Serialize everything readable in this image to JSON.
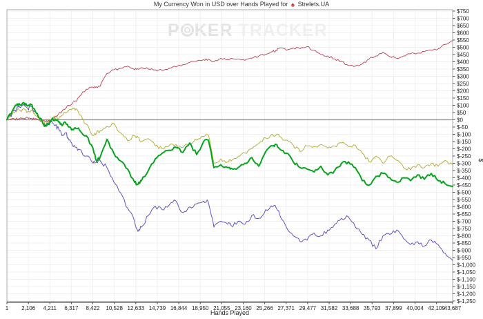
{
  "header": {
    "title_prefix": "My Currency Won in USD over Hands Played for",
    "site_icon": "red-spade-icon",
    "site_icon_glyph": "♠",
    "site_name": "Strelets.UA"
  },
  "watermark": {
    "p": "P",
    "ker": "KER",
    "tracker": "TRACKER"
  },
  "colors": {
    "title_text": "#333333",
    "site_icon": "#d42a2a",
    "watermark_dark": "#e2e2e2",
    "watermark_light": "#efefef",
    "grid": "#f0f0f0",
    "border": "#a8a8a8",
    "axis": "#333333",
    "tick": "#555555",
    "zero_line": "#888888",
    "tick_text": "#222222"
  },
  "chart_data": {
    "type": "line",
    "title": "My Currency Won in USD over Hands Played for Strelets.UA",
    "xlabel": "Hands Played",
    "ylabel": "$",
    "xlim": [
      1,
      43687
    ],
    "ylim": [
      -1250,
      750
    ],
    "grid": true,
    "legend": "none",
    "x_ticks": [
      1,
      2106,
      4211,
      6317,
      8422,
      10528,
      12633,
      14739,
      16844,
      18950,
      21055,
      23160,
      25266,
      27371,
      29477,
      31582,
      33688,
      35793,
      37899,
      40004,
      42109,
      43687
    ],
    "x_tick_labels": [
      "1",
      "2,106",
      "4,211",
      "6,317",
      "8,422",
      "10,528",
      "12,633",
      "14,739",
      "16,844",
      "18,950",
      "21,055",
      "23,160",
      "25,266",
      "27,371",
      "29,477",
      "31,582",
      "33,688",
      "35,793",
      "37,899",
      "40,004",
      "42,109",
      "43,687"
    ],
    "y_tick_step": 50,
    "y_tick_labels": [
      "$750",
      "$700",
      "$650",
      "$600",
      "$550",
      "$500",
      "$450",
      "$400",
      "$350",
      "$300",
      "$250",
      "$200",
      "$150",
      "$100",
      "$50",
      "$0",
      "$-50",
      "$-100",
      "$-150",
      "$-200",
      "$-250",
      "$-300",
      "$-350",
      "$-400",
      "$-450",
      "$-500",
      "$-550",
      "$-600",
      "$-650",
      "$-700",
      "$-750",
      "$-800",
      "$-850",
      "$-900",
      "$-950",
      "$-1,000",
      "$-1,050",
      "$-1,100",
      "$-1,150",
      "$-1,200",
      "$-1,250"
    ],
    "x_hands": [
      1,
      340,
      680,
      1015,
      1355,
      1690,
      2030,
      2370,
      2705,
      3045,
      3380,
      3720,
      4060,
      4395,
      4735,
      5075,
      5410,
      5750,
      6090,
      6425,
      6765,
      7100,
      7780,
      8455,
      8790,
      9130,
      9805,
      10485,
      11160,
      11835,
      12510,
      12850,
      13190,
      13865,
      14540,
      15215,
      15895,
      16570,
      17245,
      17920,
      18600,
      19275,
      19750,
      20290,
      20965,
      21640,
      21980,
      22655,
      23330,
      24010,
      24685,
      25360,
      26040,
      26375,
      26715,
      27390,
      28065,
      28745,
      29420,
      30095,
      30770,
      31450,
      32125,
      32800,
      33475,
      34155,
      34830,
      35505,
      36180,
      36860,
      37535,
      38210,
      38885,
      39565,
      40240,
      40915,
      41590,
      42270,
      42945,
      43687
    ],
    "series": [
      {
        "name": "red-line",
        "color": "#c15060",
        "width": 1,
        "noise": 1.6,
        "values": [
          0,
          5,
          10,
          5,
          15,
          10,
          15,
          10,
          5,
          0,
          -5,
          -10,
          -5,
          0,
          20,
          40,
          60,
          80,
          100,
          115,
          130,
          160,
          210,
          225,
          228,
          230,
          320,
          345,
          355,
          370,
          345,
          350,
          360,
          350,
          345,
          340,
          355,
          365,
          380,
          395,
          405,
          415,
          418,
          400,
          425,
          415,
          425,
          420,
          410,
          425,
          440,
          450,
          470,
          480,
          495,
          480,
          495,
          490,
          505,
          480,
          450,
          440,
          420,
          400,
          375,
          370,
          385,
          420,
          440,
          465,
          435,
          425,
          440,
          455,
          460,
          470,
          480,
          490,
          520,
          545
        ]
      },
      {
        "name": "olive-line",
        "color": "#b3b13f",
        "width": 1,
        "noise": 2.6,
        "values": [
          0,
          25,
          50,
          70,
          60,
          75,
          55,
          65,
          45,
          15,
          -5,
          -30,
          -15,
          10,
          20,
          5,
          30,
          50,
          70,
          80,
          75,
          35,
          -30,
          -110,
          -90,
          -75,
          -45,
          -25,
          -90,
          -145,
          -110,
          -120,
          -150,
          -130,
          -180,
          -200,
          -180,
          -170,
          -190,
          -160,
          -140,
          -115,
          -105,
          -300,
          -270,
          -290,
          -285,
          -255,
          -230,
          -200,
          -165,
          -125,
          -100,
          -105,
          -115,
          -140,
          -175,
          -220,
          -180,
          -185,
          -170,
          -195,
          -180,
          -160,
          -185,
          -175,
          -230,
          -290,
          -250,
          -300,
          -250,
          -280,
          -330,
          -345,
          -310,
          -330,
          -300,
          -320,
          -280,
          -310
        ]
      },
      {
        "name": "blue-line",
        "color": "#5a55c0",
        "width": 1,
        "noise": 3.2,
        "values": [
          0,
          30,
          60,
          90,
          85,
          100,
          80,
          90,
          60,
          20,
          -5,
          -40,
          -25,
          -10,
          -40,
          -60,
          -110,
          -90,
          -140,
          -175,
          -190,
          -205,
          -250,
          -300,
          -290,
          -280,
          -330,
          -430,
          -505,
          -610,
          -700,
          -770,
          -740,
          -660,
          -595,
          -620,
          -590,
          -560,
          -640,
          -600,
          -580,
          -560,
          -570,
          -740,
          -700,
          -720,
          -730,
          -700,
          -720,
          -660,
          -680,
          -620,
          -600,
          -605,
          -650,
          -740,
          -800,
          -840,
          -830,
          -780,
          -800,
          -760,
          -720,
          -680,
          -670,
          -740,
          -790,
          -830,
          -890,
          -800,
          -790,
          -760,
          -820,
          -860,
          -840,
          -870,
          -830,
          -860,
          -920,
          -970
        ]
      },
      {
        "name": "green-line",
        "color": "#06a41e",
        "width": 2,
        "noise": 2.4,
        "values": [
          0,
          40,
          80,
          110,
          100,
          115,
          95,
          105,
          75,
          30,
          5,
          -45,
          -30,
          0,
          5,
          -15,
          -40,
          -20,
          -50,
          -65,
          -60,
          -70,
          -110,
          -200,
          -285,
          -260,
          -135,
          -230,
          -285,
          -340,
          -430,
          -445,
          -420,
          -350,
          -270,
          -230,
          -210,
          -190,
          -225,
          -160,
          -240,
          -150,
          -140,
          -330,
          -310,
          -330,
          -335,
          -330,
          -300,
          -260,
          -320,
          -220,
          -180,
          -170,
          -200,
          -230,
          -290,
          -330,
          -340,
          -360,
          -320,
          -380,
          -350,
          -300,
          -290,
          -330,
          -420,
          -450,
          -390,
          -370,
          -400,
          -430,
          -400,
          -420,
          -380,
          -410,
          -370,
          -420,
          -440,
          -460
        ]
      }
    ]
  }
}
